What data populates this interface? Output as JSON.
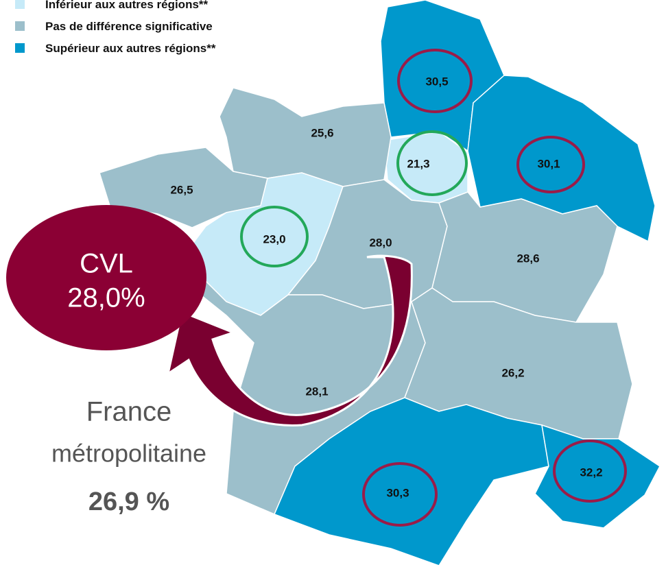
{
  "legend": [
    {
      "label": "Inférieur aux autres régions**",
      "color": "#c6eaf8"
    },
    {
      "label": "Pas de différence significative",
      "color": "#9cbfcb"
    },
    {
      "label": "Supérieur aux autres régions**",
      "color": "#0098cc"
    }
  ],
  "regions": [
    {
      "label": "30,5",
      "color": "#0098cc",
      "ring": "#9b1b48"
    },
    {
      "label": "30,1",
      "color": "#0098cc",
      "ring": "#9b1b48"
    },
    {
      "label": "21,3",
      "color": "#c6eaf8",
      "ring": "#23a85a"
    },
    {
      "label": "25,6",
      "color": "#9cbfcb"
    },
    {
      "label": "26,5",
      "color": "#9cbfcb"
    },
    {
      "label": "23,0",
      "color": "#c6eaf8",
      "ring": "#23a85a"
    },
    {
      "label": "28,0",
      "color": "#9cbfcb"
    },
    {
      "label": "28,6",
      "color": "#9cbfcb"
    },
    {
      "label": "28,1",
      "color": "#9cbfcb"
    },
    {
      "label": "26,2",
      "color": "#9cbfcb"
    },
    {
      "label": "30,3",
      "color": "#0098cc",
      "ring": "#9b1b48"
    },
    {
      "label": "32,2",
      "color": "#0098cc",
      "ring": "#9b1b48"
    }
  ],
  "callout": {
    "line1": "CVL",
    "line2": "28,0%"
  },
  "national": {
    "line1": "France",
    "line2": "métropolitaine",
    "value": "26,9 %"
  }
}
